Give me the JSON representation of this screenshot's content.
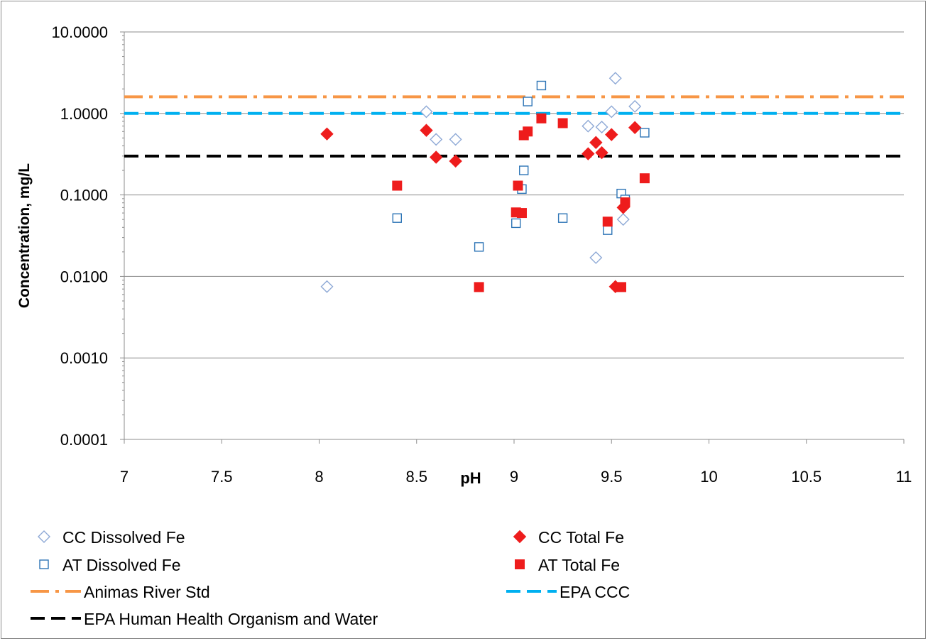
{
  "chart_data": {
    "type": "scatter",
    "xlabel": "pH",
    "ylabel": "Concentration, mg/L",
    "xlim": [
      7,
      11
    ],
    "ylim": [
      0.0001,
      10
    ],
    "yscale": "log",
    "grid": "horizontal major gridlines",
    "legend_position": "bottom",
    "x_ticks": [
      "7",
      "7.5",
      "8",
      "8.5",
      "9",
      "9.5",
      "10",
      "10.5",
      "11"
    ],
    "y_ticks": [
      "0.0001",
      "0.0010",
      "0.0100",
      "0.1000",
      "1.0000",
      "10.0000"
    ],
    "series": [
      {
        "name": "CC Dissolved Fe",
        "marker": "diamond-open",
        "color": "#8ea9d6",
        "points": [
          [
            8.04,
            0.0075
          ],
          [
            8.55,
            1.05
          ],
          [
            8.6,
            0.48
          ],
          [
            8.7,
            0.48
          ],
          [
            9.38,
            0.7
          ],
          [
            9.42,
            0.017
          ],
          [
            9.45,
            0.68
          ],
          [
            9.5,
            1.05
          ],
          [
            9.52,
            2.7
          ],
          [
            9.56,
            0.05
          ],
          [
            9.62,
            1.22
          ]
        ]
      },
      {
        "name": "CC Total Fe",
        "marker": "diamond-filled",
        "color": "#ee1c1c",
        "points": [
          [
            8.04,
            0.56
          ],
          [
            8.55,
            0.62
          ],
          [
            8.6,
            0.29
          ],
          [
            8.7,
            0.26
          ],
          [
            9.38,
            0.32
          ],
          [
            9.42,
            0.44
          ],
          [
            9.45,
            0.33
          ],
          [
            9.5,
            0.55
          ],
          [
            9.52,
            0.0075
          ],
          [
            9.56,
            0.07
          ],
          [
            9.62,
            0.67
          ]
        ]
      },
      {
        "name": "AT Dissolved Fe",
        "marker": "square-open",
        "color": "#2e75b6",
        "points": [
          [
            8.4,
            0.052
          ],
          [
            8.82,
            0.023
          ],
          [
            9.01,
            0.045
          ],
          [
            9.04,
            0.118
          ],
          [
            9.05,
            0.2
          ],
          [
            9.07,
            1.4
          ],
          [
            9.14,
            2.2
          ],
          [
            9.25,
            0.052
          ],
          [
            9.48,
            0.037
          ],
          [
            9.55,
            0.104
          ],
          [
            9.57,
            0.088
          ],
          [
            9.67,
            0.58
          ]
        ]
      },
      {
        "name": "AT Total Fe",
        "marker": "square-filled",
        "color": "#ee1c1c",
        "points": [
          [
            8.4,
            0.13
          ],
          [
            8.82,
            0.0074
          ],
          [
            9.01,
            0.061
          ],
          [
            9.02,
            0.13
          ],
          [
            9.04,
            0.06
          ],
          [
            9.05,
            0.54
          ],
          [
            9.07,
            0.6
          ],
          [
            9.14,
            0.87
          ],
          [
            9.25,
            0.76
          ],
          [
            9.48,
            0.047
          ],
          [
            9.55,
            0.0074
          ],
          [
            9.57,
            0.081
          ],
          [
            9.67,
            0.16
          ]
        ]
      }
    ],
    "reference_lines": [
      {
        "name": "Animas River Std",
        "value": 1.6,
        "style": "dash-dot",
        "color": "#f79646"
      },
      {
        "name": "EPA CCC",
        "value": 1.0,
        "style": "dashed",
        "color": "#00b0f0"
      },
      {
        "name": "EPA Human Health Organism and Water",
        "value": 0.3,
        "style": "dashed",
        "color": "#000000"
      }
    ],
    "legend": [
      {
        "label": "CC Dissolved Fe",
        "ref": "series",
        "index": 0
      },
      {
        "label": "CC Total Fe",
        "ref": "series",
        "index": 1
      },
      {
        "label": "AT Dissolved Fe",
        "ref": "series",
        "index": 2
      },
      {
        "label": "AT Total Fe",
        "ref": "series",
        "index": 3
      },
      {
        "label": "Animas River Std",
        "ref": "line",
        "index": 0
      },
      {
        "label": "EPA CCC",
        "ref": "line",
        "index": 1
      },
      {
        "label": "EPA Human Health Organism and Water",
        "ref": "line",
        "index": 2
      }
    ]
  }
}
